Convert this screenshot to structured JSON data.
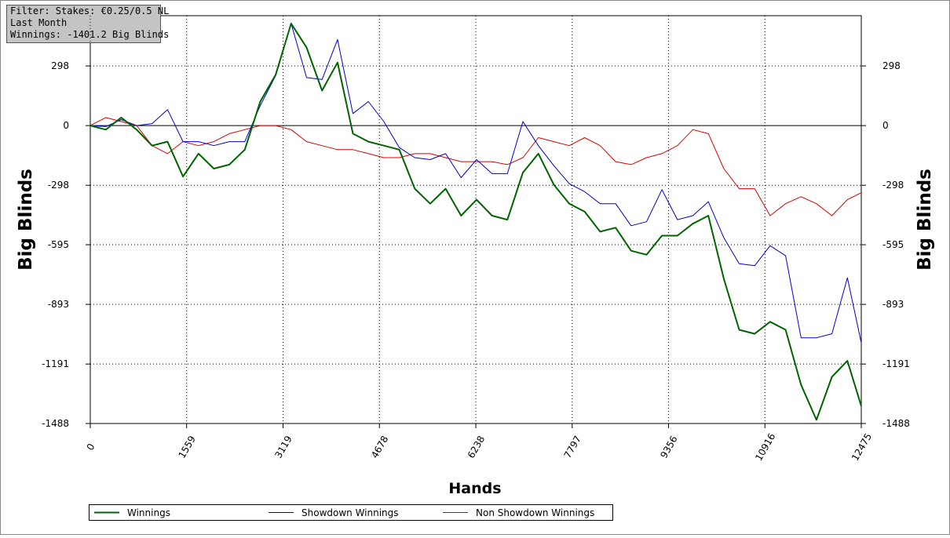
{
  "chart_data": {
    "type": "line",
    "info_box": [
      "Filter: Stakes: €0.25/0.5 NL",
      "Last Month",
      "Winnings: -1401.2 Big Blinds"
    ],
    "x_label": "Hands",
    "y_label": "Big Blinds",
    "x": [
      0,
      250,
      500,
      750,
      1000,
      1250,
      1500,
      1750,
      2000,
      2250,
      2500,
      2750,
      3000,
      3250,
      3500,
      3750,
      4000,
      4250,
      4500,
      4750,
      5000,
      5250,
      5500,
      5750,
      6000,
      6250,
      6500,
      6750,
      7000,
      7250,
      7500,
      7750,
      8000,
      8250,
      8500,
      8750,
      9000,
      9250,
      9500,
      9750,
      10000,
      10250,
      10500,
      10750,
      11000,
      11250,
      11500,
      11750,
      12000,
      12250,
      12475
    ],
    "xlim": [
      0,
      12475
    ],
    "xticks": [
      0,
      1559,
      3119,
      4678,
      6238,
      7797,
      9356,
      10916,
      12475
    ],
    "ylim": [
      -1488,
      549
    ],
    "yticks": [
      -1488,
      -1191,
      -893,
      -595,
      -298,
      0,
      298
    ],
    "grid": true,
    "series": [
      {
        "name": "Winnings",
        "color": "#006400",
        "line_width": 2,
        "values": [
          0,
          -20,
          40,
          -20,
          -100,
          -80,
          -255,
          -140,
          -215,
          -195,
          -120,
          120,
          255,
          510,
          390,
          175,
          315,
          -40,
          -80,
          -100,
          -120,
          -315,
          -390,
          -315,
          -450,
          -370,
          -450,
          -470,
          -235,
          -140,
          -295,
          -390,
          -430,
          -530,
          -510,
          -625,
          -645,
          -550,
          -550,
          -490,
          -450,
          -765,
          -1020,
          -1040,
          -980,
          -1020,
          -1295,
          -1470,
          -1255,
          -1175,
          -1401.2
        ]
      },
      {
        "name": "Showdown Winnings",
        "color": "#0000cc",
        "line_width": 1,
        "values": [
          0,
          -5,
          30,
          0,
          10,
          80,
          -80,
          -80,
          -100,
          -80,
          -80,
          100,
          250,
          510,
          240,
          230,
          430,
          60,
          120,
          20,
          -110,
          -160,
          -170,
          -140,
          -260,
          -170,
          -240,
          -240,
          20,
          -100,
          -200,
          -290,
          -330,
          -390,
          -390,
          -500,
          -480,
          -320,
          -470,
          -450,
          -380,
          -560,
          -690,
          -700,
          -600,
          -650,
          -1060,
          -1060,
          -1040,
          -760,
          -1085
        ]
      },
      {
        "name": "Non Showdown Winnings",
        "color": "#dd0000",
        "line_width": 1,
        "values": [
          0,
          40,
          20,
          0,
          -100,
          -140,
          -80,
          -100,
          -80,
          -40,
          -20,
          0,
          0,
          -20,
          -80,
          -100,
          -120,
          -120,
          -140,
          -160,
          -160,
          -140,
          -140,
          -160,
          -180,
          -180,
          -180,
          -195,
          -160,
          -60,
          -80,
          -100,
          -60,
          -100,
          -180,
          -195,
          -160,
          -140,
          -100,
          -20,
          -40,
          -215,
          -315,
          -315,
          -450,
          -390,
          -355,
          -390,
          -450,
          -370,
          -335
        ]
      }
    ]
  }
}
